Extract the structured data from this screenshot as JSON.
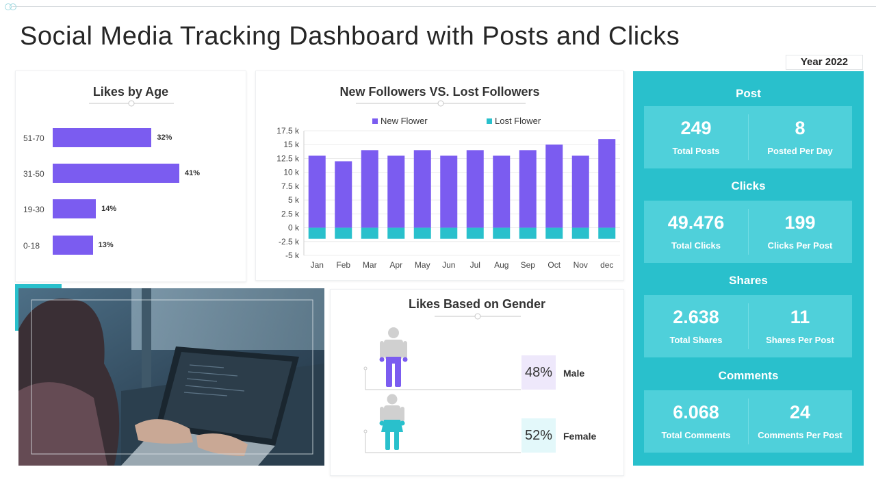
{
  "page": {
    "title": "Social Media Tracking Dashboard with Posts and Clicks",
    "year": "Year 2022"
  },
  "colors": {
    "purple": "#7b5cf0",
    "teal": "#29c0cc",
    "teal_light": "#4fd0da"
  },
  "likes_by_age": {
    "title": "Likes by Age",
    "rows": [
      {
        "label": "51-70",
        "value": 32,
        "pct": "32%"
      },
      {
        "label": "31-50",
        "value": 41,
        "pct": "41%"
      },
      {
        "label": "19-30",
        "value": 14,
        "pct": "14%"
      },
      {
        "label": "0-18",
        "value": 13,
        "pct": "13%"
      }
    ]
  },
  "followers": {
    "title": "New Followers VS. Lost Followers"
  },
  "chart_data": {
    "type": "bar",
    "title": "New Followers VS. Lost Followers",
    "categories": [
      "Jan",
      "Feb",
      "Mar",
      "Apr",
      "May",
      "Jun",
      "Jul",
      "Aug",
      "Sep",
      "Oct",
      "Nov",
      "dec"
    ],
    "series": [
      {
        "name": "New Flower",
        "color": "#7b5cf0",
        "values": [
          13000,
          12000,
          14000,
          13000,
          14000,
          13000,
          14000,
          13000,
          14000,
          15000,
          13000,
          16000
        ]
      },
      {
        "name": "Lost Flower",
        "color": "#29c0cc",
        "values": [
          -2000,
          -2000,
          -2000,
          -2000,
          -2000,
          -2000,
          -2000,
          -2000,
          -2000,
          -2000,
          -2000,
          -2000
        ]
      }
    ],
    "y_ticks": [
      17500,
      15000,
      12500,
      10000,
      7500,
      5000,
      2500,
      0,
      -2500,
      -5000
    ],
    "y_tick_labels": [
      "17.5 k",
      "15 k",
      "12.5 k",
      "10 k",
      "7.5 k",
      "5 k",
      "2.5 k",
      "0 k",
      "-2.5 k",
      "-5 k"
    ],
    "ylim": [
      -5000,
      17500
    ],
    "xlabel": "",
    "ylabel": "",
    "legend": "top"
  },
  "gender": {
    "title": "Likes Based on Gender",
    "male": {
      "pct": "48%",
      "label": "Male"
    },
    "female": {
      "pct": "52%",
      "label": "Female"
    }
  },
  "stats": {
    "post": {
      "title": "Post",
      "left": {
        "value": "249",
        "label": "Total Posts"
      },
      "right": {
        "value": "8",
        "label": "Posted Per Day"
      }
    },
    "clicks": {
      "title": "Clicks",
      "left": {
        "value": "49.476",
        "label": "Total Clicks"
      },
      "right": {
        "value": "199",
        "label": "Clicks Per Post"
      }
    },
    "shares": {
      "title": "Shares",
      "left": {
        "value": "2.638",
        "label": "Total Shares"
      },
      "right": {
        "value": "11",
        "label": "Shares Per Post"
      }
    },
    "comments": {
      "title": "Comments",
      "left": {
        "value": "6.068",
        "label": "Total Comments"
      },
      "right": {
        "value": "24",
        "label": "Comments Per Post"
      }
    }
  }
}
